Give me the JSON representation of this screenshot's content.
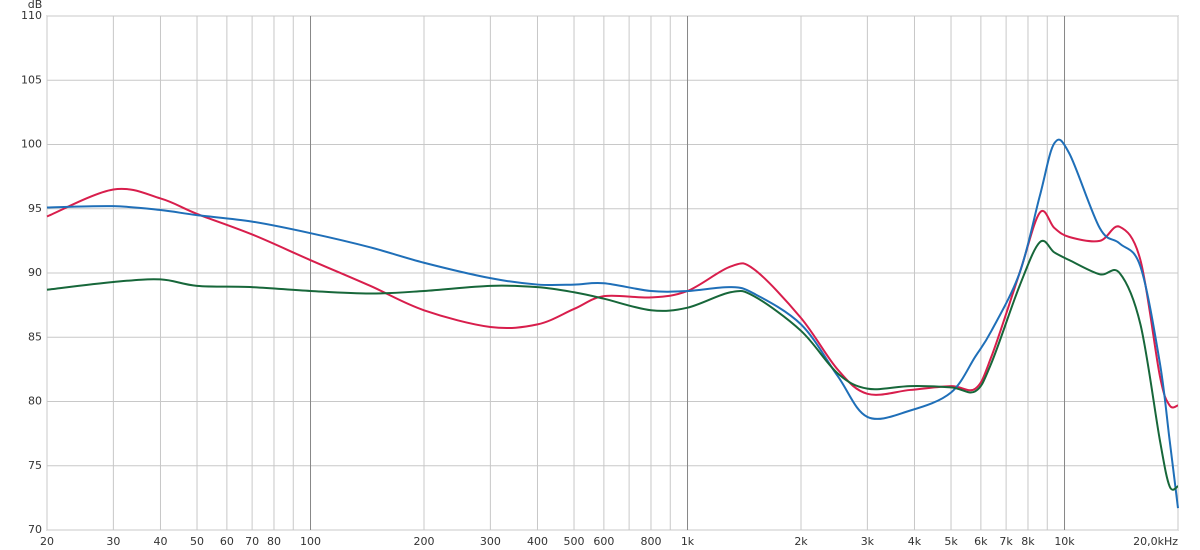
{
  "chart_data": {
    "type": "line",
    "y_label": "dB",
    "xscale": "log",
    "xlim": [
      20,
      20000
    ],
    "ylim": [
      70,
      110
    ],
    "yticks": [
      70,
      75,
      80,
      85,
      90,
      95,
      100,
      105,
      110
    ],
    "xticks": [
      20,
      30,
      40,
      50,
      60,
      70,
      80,
      100,
      200,
      300,
      400,
      500,
      600,
      800,
      {
        "value": 1000,
        "label": "1k"
      },
      {
        "value": 2000,
        "label": "2k"
      },
      {
        "value": 3000,
        "label": "3k"
      },
      {
        "value": 4000,
        "label": "4k"
      },
      {
        "value": 5000,
        "label": "5k"
      },
      {
        "value": 6000,
        "label": "6k"
      },
      {
        "value": 7000,
        "label": "7k"
      },
      {
        "value": 8000,
        "label": "8k"
      },
      {
        "value": 10000,
        "label": "10k"
      },
      {
        "value": 20000,
        "label": "20,0kHz"
      }
    ],
    "minor_xgrid": [
      90,
      700,
      900,
      9000
    ],
    "major_xgrid": [
      100,
      1000,
      10000
    ],
    "grid": true,
    "x": [
      20,
      30,
      40,
      50,
      70,
      100,
      144,
      200,
      300,
      400,
      500,
      600,
      800,
      1000,
      1300,
      1500,
      2000,
      2500,
      3000,
      3900,
      5000,
      5800,
      6400,
      7600,
      8600,
      9400,
      10300,
      12400,
      14000,
      15900,
      17900,
      19000,
      20000
    ],
    "series": [
      {
        "color": "#d81e4c",
        "values": [
          94.4,
          96.5,
          95.8,
          94.6,
          93,
          91,
          89,
          87.1,
          85.8,
          86.0,
          87.2,
          88.2,
          88.1,
          88.6,
          90.5,
          90.3,
          86.5,
          82.5,
          80.6,
          80.9,
          81.2,
          81.0,
          83.5,
          90,
          94.7,
          93.5,
          92.8,
          92.5,
          93.6,
          91,
          82,
          79.7,
          79.7
        ]
      },
      {
        "color": "#1f6fb8",
        "values": [
          95.1,
          95.2,
          94.9,
          94.5,
          94.0,
          93.1,
          92.0,
          90.8,
          89.6,
          89.1,
          89.1,
          89.2,
          88.6,
          88.6,
          88.9,
          88.4,
          86.0,
          82.0,
          78.8,
          79.3,
          80.7,
          83.5,
          85.5,
          90,
          96,
          100.1,
          99.3,
          93.5,
          92.3,
          90.5,
          83,
          77,
          71.7
        ]
      },
      {
        "color": "#17673a",
        "values": [
          88.7,
          89.3,
          89.5,
          89.0,
          88.9,
          88.6,
          88.4,
          88.6,
          89.0,
          88.9,
          88.5,
          88.0,
          87.1,
          87.3,
          88.5,
          88.2,
          85.5,
          82.2,
          81.0,
          81.2,
          81.1,
          80.8,
          83,
          89,
          92.4,
          91.6,
          91.0,
          89.9,
          90.0,
          86,
          77,
          73.4,
          73.4
        ]
      }
    ]
  }
}
